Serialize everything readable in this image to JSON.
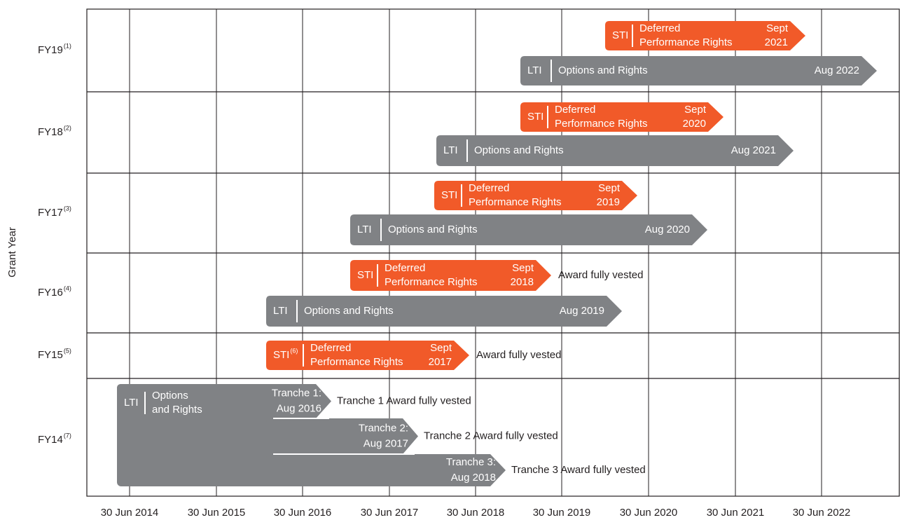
{
  "y_axis_title": "Grant Year",
  "x_axis_labels": [
    "30 Jun 2014",
    "30 Jun 2015",
    "30 Jun 2016",
    "30 Jun 2017",
    "30 Jun 2018",
    "30 Jun 2019",
    "30 Jun 2020",
    "30 Jun 2021",
    "30 Jun 2022"
  ],
  "rows": [
    {
      "label": "FY19",
      "note": "(1)",
      "bars": [
        {
          "tag": "STI",
          "title": [
            "Deferred",
            "Performance Rights"
          ],
          "end": [
            "Sept",
            "2021"
          ]
        },
        {
          "tag": "LTI",
          "title": [
            "Options and Rights"
          ],
          "end": [
            "Aug 2022"
          ]
        }
      ]
    },
    {
      "label": "FY18",
      "note": "(2)",
      "bars": [
        {
          "tag": "STI",
          "title": [
            "Deferred",
            "Performance Rights"
          ],
          "end": [
            "Sept",
            "2020"
          ]
        },
        {
          "tag": "LTI",
          "title": [
            "Options and Rights"
          ],
          "end": [
            "Aug 2021"
          ]
        }
      ]
    },
    {
      "label": "FY17",
      "note": "(3)",
      "bars": [
        {
          "tag": "STI",
          "title": [
            "Deferred",
            "Performance Rights"
          ],
          "end": [
            "Sept",
            "2019"
          ]
        },
        {
          "tag": "LTI",
          "title": [
            "Options and Rights"
          ],
          "end": [
            "Aug 2020"
          ]
        }
      ]
    },
    {
      "label": "FY16",
      "note": "(4)",
      "bars": [
        {
          "tag": "STI",
          "title": [
            "Deferred",
            "Performance Rights"
          ],
          "end": [
            "Sept",
            "2018"
          ],
          "outcome": "Award fully vested"
        },
        {
          "tag": "LTI",
          "title": [
            "Options and Rights"
          ],
          "end": [
            "Aug 2019"
          ]
        }
      ]
    },
    {
      "label": "FY15",
      "note": "(5)",
      "bars": [
        {
          "tag": "STI",
          "tag_note": "(6)",
          "title": [
            "Deferred",
            "Performance Rights"
          ],
          "end": [
            "Sept",
            "2017"
          ],
          "outcome": "Award fully vested"
        }
      ]
    },
    {
      "label": "FY14",
      "note": "(7)",
      "bars": [
        {
          "tag": "LTI",
          "title": [
            "Options",
            "and Rights"
          ]
        }
      ],
      "tranches": [
        {
          "end": [
            "Tranche 1:",
            "Aug 2016"
          ],
          "outcome": "Tranche 1 Award fully vested"
        },
        {
          "end": [
            "Tranche 2:",
            "Aug 2017"
          ],
          "outcome": "Tranche 2 Award fully vested"
        },
        {
          "end": [
            "Tranche 3:",
            "Aug 2018"
          ],
          "outcome": "Tranche 3 Award fully vested"
        }
      ]
    }
  ]
}
